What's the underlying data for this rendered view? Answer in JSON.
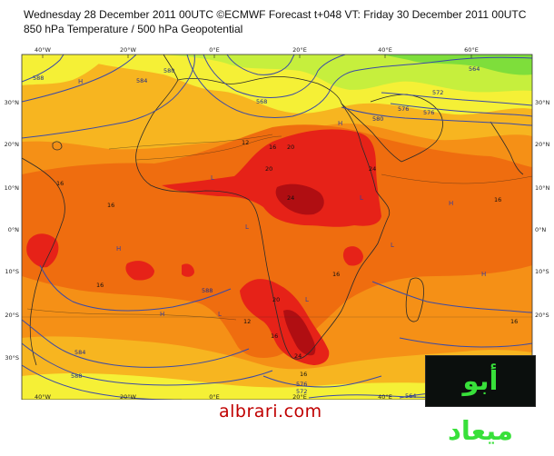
{
  "header": {
    "line1": "Wednesday 28 December 2011 00UTC ©ECMWF Forecast t+048 VT: Friday 30 December 2011 00UTC",
    "line2": "850 hPa Temperature / 500 hPa Geopotential"
  },
  "map": {
    "lon_labels": [
      "40°W",
      "20°W",
      "0°E",
      "20°E",
      "40°E",
      "60°E"
    ],
    "lat_labels": [
      "30°N",
      "20°N",
      "10°N",
      "0°N",
      "10°S",
      "20°S",
      "30°S"
    ],
    "contour_labels": [
      "588",
      "584",
      "580",
      "576",
      "572",
      "568",
      "564",
      "588",
      "580",
      "576",
      "584",
      "588",
      "576",
      "572",
      "564"
    ],
    "temperature_labels": [
      "12",
      "16",
      "20",
      "24",
      "16",
      "16",
      "24",
      "20",
      "16",
      "16",
      "16",
      "16",
      "24",
      "20",
      "12",
      "16",
      "16"
    ],
    "pressure_labels": [
      "H",
      "H",
      "L",
      "L",
      "H",
      "L",
      "L",
      "H",
      "L",
      "H",
      "L",
      "H"
    ],
    "colors": {
      "cold_green": "#7ede3b",
      "cool_yellowgreen": "#c6ef3d",
      "yellow": "#f5f036",
      "light_orange": "#f7b520",
      "orange": "#f59016",
      "deep_orange": "#ef6d0f",
      "red": "#e62218",
      "dark_red": "#b00e12",
      "contour_line": "#3b4aa6",
      "coastline": "#2a2a2a"
    }
  },
  "watermark": {
    "text": "أبو ميعاد"
  },
  "site": {
    "text": "albrari.com"
  }
}
